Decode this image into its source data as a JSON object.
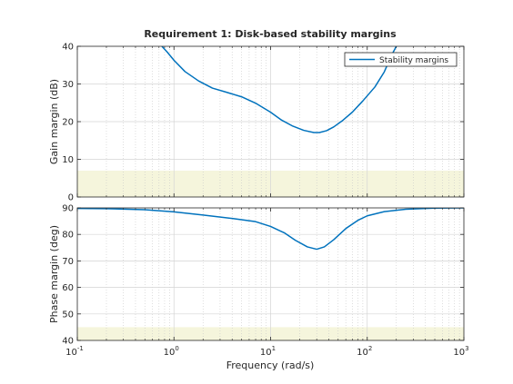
{
  "chart_data": [
    {
      "type": "line",
      "title": "Requirement 1: Disk-based stability margins",
      "ylabel": "Gain margin (dB)",
      "xlabel": "",
      "xscale": "log",
      "xlim": [
        0.1,
        1000
      ],
      "ylim": [
        0,
        40
      ],
      "yticks": [
        "0",
        "10",
        "20",
        "30",
        "40"
      ],
      "grid": true,
      "legend": {
        "entries": [
          "Stability margins"
        ],
        "position": "top-right"
      },
      "shaded_region": {
        "y": [
          0,
          7
        ],
        "color": "#f5f5dc"
      },
      "series": [
        {
          "name": "Stability margins",
          "color": "#0072bd",
          "x": [
            0.75,
            0.85,
            1,
            1.3,
            1.8,
            2.5,
            3.5,
            5,
            7,
            10,
            13,
            17,
            22,
            28,
            32,
            38,
            45,
            55,
            70,
            90,
            120,
            150,
            180,
            200
          ],
          "y": [
            40,
            38.5,
            36.3,
            33.3,
            30.8,
            28.9,
            27.8,
            26.6,
            24.9,
            22.5,
            20.4,
            18.8,
            17.7,
            17.1,
            17.1,
            17.6,
            18.6,
            20.2,
            22.5,
            25.5,
            29.2,
            33.2,
            37.8,
            40
          ]
        }
      ]
    },
    {
      "type": "line",
      "title": "",
      "ylabel": "Phase margin (deg)",
      "xlabel": "Frequency (rad/s)",
      "xscale": "log",
      "xlim": [
        0.1,
        1000
      ],
      "xticks": [
        {
          "base": "10",
          "exp": "-1"
        },
        {
          "base": "10",
          "exp": "0"
        },
        {
          "base": "10",
          "exp": "1"
        },
        {
          "base": "10",
          "exp": "2"
        },
        {
          "base": "10",
          "exp": "3"
        }
      ],
      "ylim": [
        40,
        90
      ],
      "yticks": [
        "40",
        "50",
        "60",
        "70",
        "80",
        "90"
      ],
      "grid": true,
      "shaded_region": {
        "y": [
          40,
          45
        ],
        "color": "#f5f5dc"
      },
      "series": [
        {
          "name": "Stability margins",
          "color": "#0072bd",
          "x": [
            0.1,
            0.2,
            0.5,
            1,
            2,
            4,
            7,
            10,
            14,
            18,
            24,
            30,
            36,
            45,
            60,
            80,
            100,
            150,
            250,
            500,
            1000
          ],
          "y": [
            89.8,
            89.7,
            89.3,
            88.5,
            87.3,
            86,
            84.8,
            83,
            80.5,
            77.8,
            75.3,
            74.4,
            75.3,
            78,
            82.2,
            85.3,
            87,
            88.6,
            89.5,
            89.9,
            90
          ]
        }
      ]
    }
  ]
}
